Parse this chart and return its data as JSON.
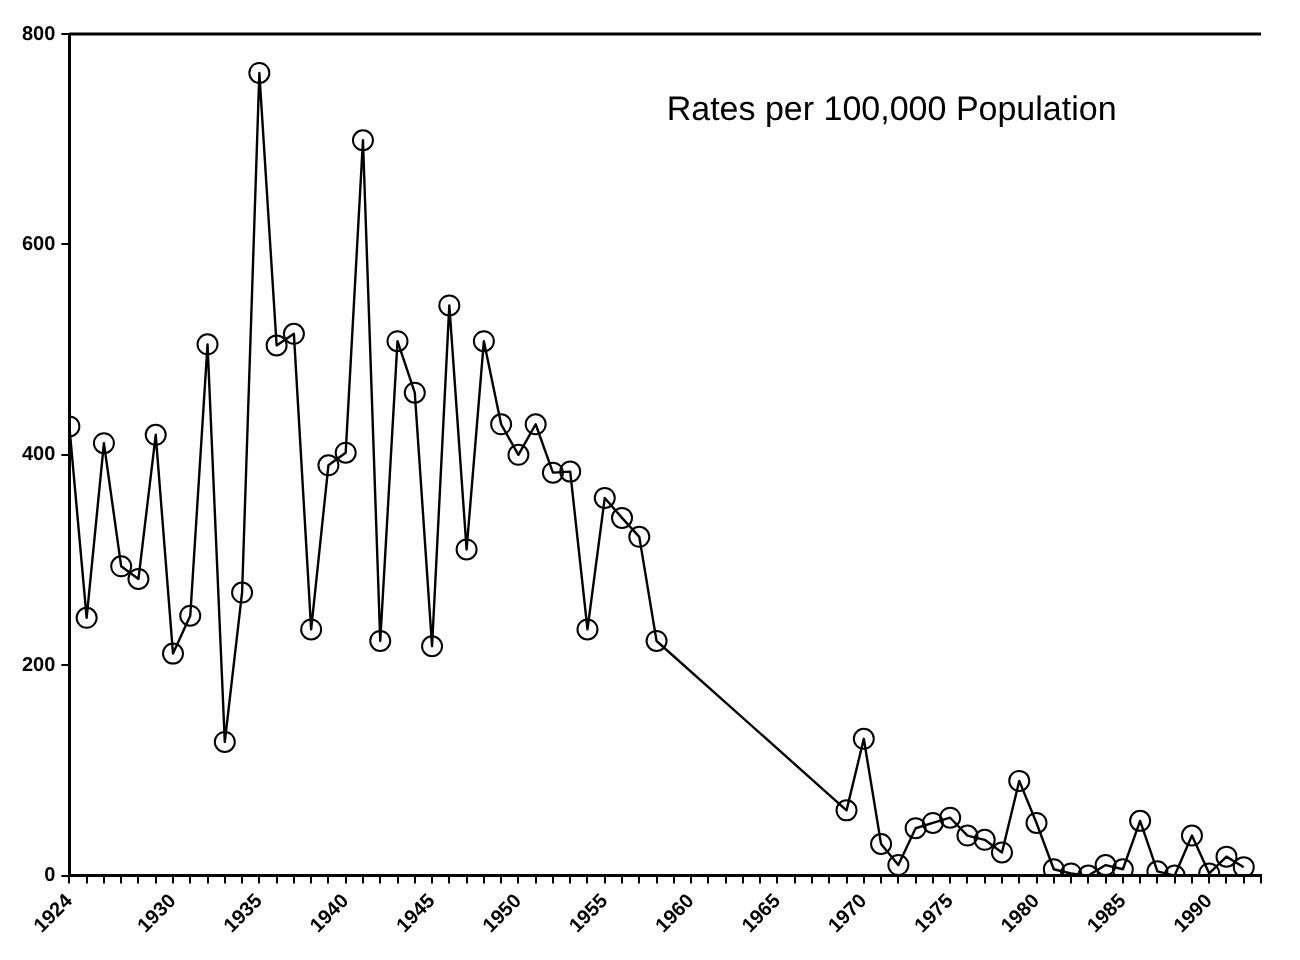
{
  "chart_data": {
    "type": "line",
    "annotations": [
      "Rates per 100,000 Population"
    ],
    "x": [
      1924,
      1925,
      1926,
      1927,
      1928,
      1929,
      1930,
      1931,
      1932,
      1933,
      1934,
      1935,
      1936,
      1937,
      1938,
      1939,
      1940,
      1941,
      1942,
      1943,
      1944,
      1945,
      1946,
      1947,
      1948,
      1949,
      1950,
      1951,
      1952,
      1953,
      1954,
      1955,
      1956,
      1957,
      1958,
      1969,
      1970,
      1971,
      1972,
      1973,
      1974,
      1975,
      1976,
      1977,
      1978,
      1979,
      1980,
      1981,
      1982,
      1983,
      1984,
      1985,
      1986,
      1987,
      1988,
      1989,
      1990,
      1991,
      1992
    ],
    "series": [
      {
        "color": "#000000",
        "values": [
          427,
          245,
          411,
          294,
          282,
          419,
          211,
          247,
          505,
          127,
          269,
          763,
          504,
          515,
          234,
          390,
          402,
          699,
          223,
          508,
          459,
          218,
          542,
          310,
          508,
          429,
          400,
          429,
          383,
          384,
          234,
          359,
          340,
          322,
          223,
          62,
          130,
          30,
          10,
          45,
          50,
          55,
          38,
          34,
          22,
          90,
          50,
          6,
          2,
          0,
          10,
          6,
          52,
          4,
          0,
          38,
          2,
          18,
          8
        ]
      }
    ],
    "xlim": [
      1924,
      1993
    ],
    "xticks": [
      1924,
      {
        "value": 1925,
        "label": null
      },
      {
        "value": 1926,
        "label": null
      },
      {
        "value": 1927,
        "label": null
      },
      {
        "value": 1928,
        "label": null
      },
      {
        "value": 1929,
        "label": null
      },
      1930,
      {
        "value": 1931,
        "label": null
      },
      {
        "value": 1932,
        "label": null
      },
      {
        "value": 1933,
        "label": null
      },
      {
        "value": 1934,
        "label": null
      },
      1935,
      {
        "value": 1936,
        "label": null
      },
      {
        "value": 1937,
        "label": null
      },
      {
        "value": 1938,
        "label": null
      },
      {
        "value": 1939,
        "label": null
      },
      1940,
      {
        "value": 1941,
        "label": null
      },
      {
        "value": 1942,
        "label": null
      },
      {
        "value": 1943,
        "label": null
      },
      {
        "value": 1944,
        "label": null
      },
      1945,
      {
        "value": 1946,
        "label": null
      },
      {
        "value": 1947,
        "label": null
      },
      {
        "value": 1948,
        "label": null
      },
      {
        "value": 1949,
        "label": null
      },
      1950,
      {
        "value": 1951,
        "label": null
      },
      {
        "value": 1952,
        "label": null
      },
      {
        "value": 1953,
        "label": null
      },
      {
        "value": 1954,
        "label": null
      },
      1955,
      {
        "value": 1956,
        "label": null
      },
      {
        "value": 1957,
        "label": null
      },
      {
        "value": 1958,
        "label": null
      },
      {
        "value": 1959,
        "label": null
      },
      1960,
      {
        "value": 1961,
        "label": null
      },
      {
        "value": 1962,
        "label": null
      },
      {
        "value": 1963,
        "label": null
      },
      {
        "value": 1964,
        "label": null
      },
      1965,
      {
        "value": 1966,
        "label": null
      },
      {
        "value": 1967,
        "label": null
      },
      {
        "value": 1968,
        "label": null
      },
      {
        "value": 1969,
        "label": null
      },
      1970,
      {
        "value": 1971,
        "label": null
      },
      {
        "value": 1972,
        "label": null
      },
      {
        "value": 1973,
        "label": null
      },
      {
        "value": 1974,
        "label": null
      },
      1975,
      {
        "value": 1976,
        "label": null
      },
      {
        "value": 1977,
        "label": null
      },
      {
        "value": 1978,
        "label": null
      },
      {
        "value": 1979,
        "label": null
      },
      1980,
      {
        "value": 1981,
        "label": null
      },
      {
        "value": 1982,
        "label": null
      },
      {
        "value": 1983,
        "label": null
      },
      {
        "value": 1984,
        "label": null
      },
      1985,
      {
        "value": 1986,
        "label": null
      },
      {
        "value": 1987,
        "label": null
      },
      {
        "value": 1988,
        "label": null
      },
      {
        "value": 1989,
        "label": null
      },
      1990,
      {
        "value": 1991,
        "label": null
      },
      {
        "value": 1992,
        "label": null
      },
      {
        "value": 1993,
        "label": null
      }
    ],
    "ylim": [
      0,
      800
    ],
    "yticks": [
      0,
      200,
      400,
      600,
      800
    ],
    "grid": false,
    "legend": false,
    "marker": "circle",
    "line_style": "solid"
  }
}
